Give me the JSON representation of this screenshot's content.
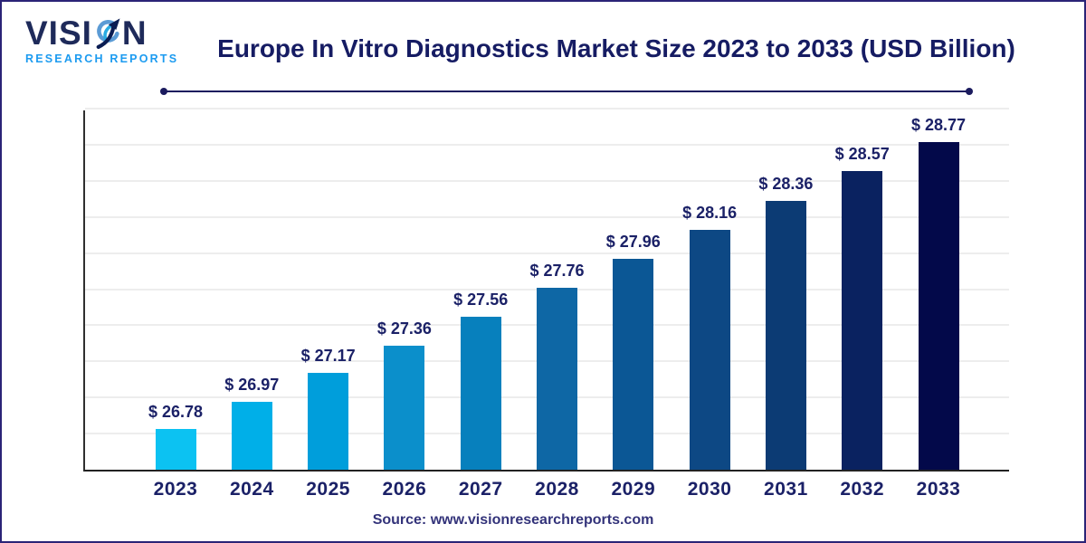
{
  "logo": {
    "name_part1": "VISI",
    "name_part2": "N",
    "full_name": "VISION",
    "subtitle": "RESEARCH REPORTS"
  },
  "header": {
    "title": "Europe In Vitro Diagnostics Market Size 2023 to 2033 (USD Billion)"
  },
  "footer": {
    "source": "Source: www.visionresearchreports.com"
  },
  "colors": {
    "frame_border": "#2b2377",
    "title_text": "#161c63",
    "label_text": "#1b2167",
    "divider": "#1b1b5e",
    "gridline": "#ededed",
    "axis": "#2f2f2f",
    "logo_navy": "#1e2a5a",
    "logo_blue": "#1c9bf0"
  },
  "chart_data": {
    "type": "bar",
    "title": "Europe In Vitro Diagnostics Market Size 2023 to 2033 (USD Billion)",
    "unit": "USD Billion",
    "categories": [
      "2023",
      "2024",
      "2025",
      "2026",
      "2027",
      "2028",
      "2029",
      "2030",
      "2031",
      "2032",
      "2033"
    ],
    "values": [
      26.78,
      26.97,
      27.17,
      27.36,
      27.56,
      27.76,
      27.96,
      28.16,
      28.36,
      28.57,
      28.77
    ],
    "value_labels": [
      "$ 26.78",
      "$ 26.97",
      "$ 27.17",
      "$ 27.36",
      "$ 27.56",
      "$ 27.76",
      "$ 27.96",
      "$ 28.16",
      "$ 28.36",
      "$ 28.57",
      "$ 28.77"
    ],
    "bar_colors": [
      "#0cc2f2",
      "#00afe8",
      "#009edb",
      "#0b8fcb",
      "#0780bd",
      "#0e67a5",
      "#0b5795",
      "#0d4884",
      "#0c3b74",
      "#0a2260",
      "#03094a"
    ],
    "xlabel": "",
    "ylabel": "",
    "ylim": [
      26.5,
      29.0
    ],
    "grid_step": 0.25,
    "grid": true,
    "legend": false
  }
}
